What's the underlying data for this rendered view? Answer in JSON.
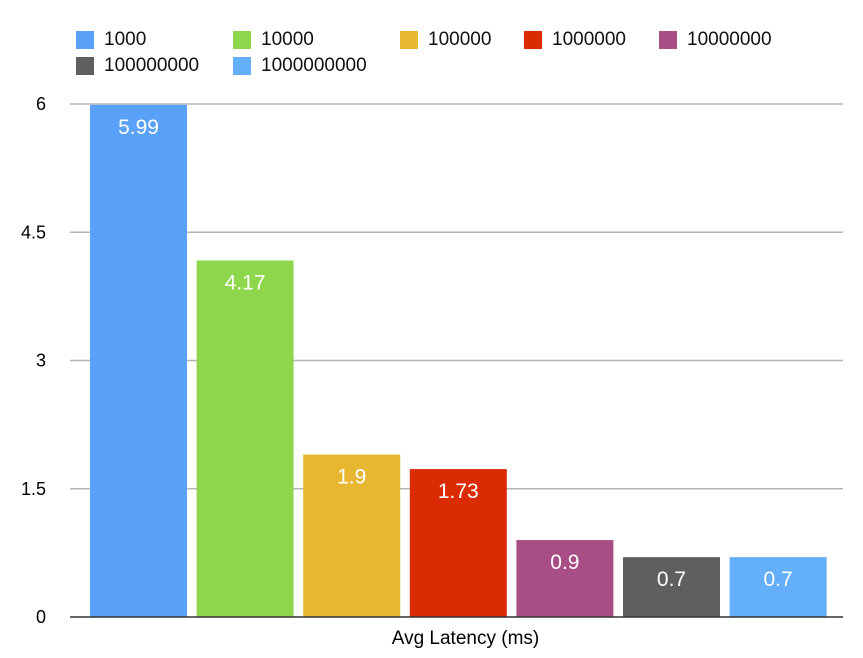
{
  "chart_data": {
    "type": "bar",
    "categories": [
      "Avg Latency (ms)"
    ],
    "xlabel": "Avg Latency (ms)",
    "ylabel": "",
    "ylim": [
      0,
      6
    ],
    "yticks": [
      "0",
      "1.5",
      "3",
      "4.5",
      "6"
    ],
    "grid": true,
    "legend_position": "top",
    "series": [
      {
        "name": "1000",
        "values": [
          5.99
        ],
        "label": "5.99",
        "color": "#5aa2f9"
      },
      {
        "name": "10000",
        "values": [
          4.17
        ],
        "label": "4.17",
        "color": "#8ed64b"
      },
      {
        "name": "100000",
        "values": [
          1.9
        ],
        "label": "1.9",
        "color": "#e8b732"
      },
      {
        "name": "1000000",
        "values": [
          1.73
        ],
        "label": "1.73",
        "color": "#db2b05"
      },
      {
        "name": "10000000",
        "values": [
          0.9
        ],
        "label": "0.9",
        "color": "#a84d86"
      },
      {
        "name": "100000000",
        "values": [
          0.7
        ],
        "label": "0.7",
        "color": "#5f5f5f"
      },
      {
        "name": "1000000000",
        "values": [
          0.7
        ],
        "label": "0.7",
        "color": "#63affb"
      }
    ]
  }
}
